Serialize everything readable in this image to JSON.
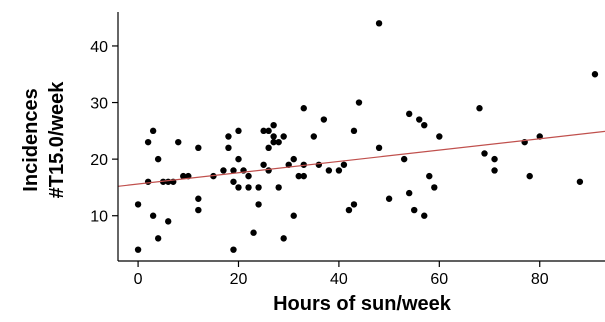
{
  "chart_data": {
    "type": "scatter",
    "title": "",
    "xlabel": "Hours of sun/week",
    "ylabel_line1": "Incidences",
    "ylabel_line2": "#T15.0/week",
    "xlim": [
      -4,
      93
    ],
    "ylim": [
      2,
      46
    ],
    "xticks": [
      0,
      20,
      40,
      60,
      80
    ],
    "yticks": [
      10,
      20,
      30,
      40
    ],
    "grid": false,
    "colors": {
      "points": "#000000",
      "trend_line": "#c0504d",
      "axes": "#000000"
    },
    "trend_line": {
      "x": [
        -4,
        93
      ],
      "y": [
        15.2,
        24.9
      ]
    },
    "points": [
      {
        "x": 0,
        "y": 4
      },
      {
        "x": 0,
        "y": 12
      },
      {
        "x": 2,
        "y": 16
      },
      {
        "x": 2,
        "y": 23
      },
      {
        "x": 3,
        "y": 10
      },
      {
        "x": 3,
        "y": 25
      },
      {
        "x": 4,
        "y": 6
      },
      {
        "x": 4,
        "y": 20
      },
      {
        "x": 5,
        "y": 16
      },
      {
        "x": 6,
        "y": 9
      },
      {
        "x": 6,
        "y": 16
      },
      {
        "x": 7,
        "y": 16
      },
      {
        "x": 8,
        "y": 23
      },
      {
        "x": 9,
        "y": 17
      },
      {
        "x": 10,
        "y": 17
      },
      {
        "x": 12,
        "y": 11
      },
      {
        "x": 12,
        "y": 13
      },
      {
        "x": 12,
        "y": 22
      },
      {
        "x": 15,
        "y": 17
      },
      {
        "x": 17,
        "y": 18
      },
      {
        "x": 18,
        "y": 22
      },
      {
        "x": 18,
        "y": 24
      },
      {
        "x": 19,
        "y": 4
      },
      {
        "x": 19,
        "y": 16
      },
      {
        "x": 19,
        "y": 18
      },
      {
        "x": 20,
        "y": 15
      },
      {
        "x": 20,
        "y": 20
      },
      {
        "x": 20,
        "y": 25
      },
      {
        "x": 21,
        "y": 18
      },
      {
        "x": 22,
        "y": 15
      },
      {
        "x": 22,
        "y": 17
      },
      {
        "x": 23,
        "y": 7
      },
      {
        "x": 24,
        "y": 12
      },
      {
        "x": 24,
        "y": 15
      },
      {
        "x": 25,
        "y": 19
      },
      {
        "x": 25,
        "y": 25
      },
      {
        "x": 26,
        "y": 18
      },
      {
        "x": 26,
        "y": 22
      },
      {
        "x": 26,
        "y": 25
      },
      {
        "x": 27,
        "y": 23
      },
      {
        "x": 27,
        "y": 24
      },
      {
        "x": 27,
        "y": 26
      },
      {
        "x": 28,
        "y": 15
      },
      {
        "x": 28,
        "y": 23
      },
      {
        "x": 29,
        "y": 24
      },
      {
        "x": 29,
        "y": 6
      },
      {
        "x": 30,
        "y": 19
      },
      {
        "x": 31,
        "y": 10
      },
      {
        "x": 31,
        "y": 20
      },
      {
        "x": 32,
        "y": 17
      },
      {
        "x": 33,
        "y": 17
      },
      {
        "x": 33,
        "y": 19
      },
      {
        "x": 33,
        "y": 29
      },
      {
        "x": 35,
        "y": 24
      },
      {
        "x": 36,
        "y": 19
      },
      {
        "x": 37,
        "y": 27
      },
      {
        "x": 38,
        "y": 18
      },
      {
        "x": 40,
        "y": 18
      },
      {
        "x": 41,
        "y": 19
      },
      {
        "x": 42,
        "y": 11
      },
      {
        "x": 43,
        "y": 12
      },
      {
        "x": 43,
        "y": 25
      },
      {
        "x": 44,
        "y": 30
      },
      {
        "x": 48,
        "y": 44
      },
      {
        "x": 48,
        "y": 22
      },
      {
        "x": 50,
        "y": 13
      },
      {
        "x": 53,
        "y": 20
      },
      {
        "x": 54,
        "y": 14
      },
      {
        "x": 54,
        "y": 28
      },
      {
        "x": 55,
        "y": 11
      },
      {
        "x": 56,
        "y": 27
      },
      {
        "x": 57,
        "y": 10
      },
      {
        "x": 57,
        "y": 26
      },
      {
        "x": 58,
        "y": 17
      },
      {
        "x": 59,
        "y": 15
      },
      {
        "x": 60,
        "y": 24
      },
      {
        "x": 68,
        "y": 29
      },
      {
        "x": 69,
        "y": 21
      },
      {
        "x": 71,
        "y": 20
      },
      {
        "x": 71,
        "y": 18
      },
      {
        "x": 77,
        "y": 23
      },
      {
        "x": 78,
        "y": 17
      },
      {
        "x": 80,
        "y": 24
      },
      {
        "x": 88,
        "y": 16
      },
      {
        "x": 91,
        "y": 35
      }
    ]
  }
}
